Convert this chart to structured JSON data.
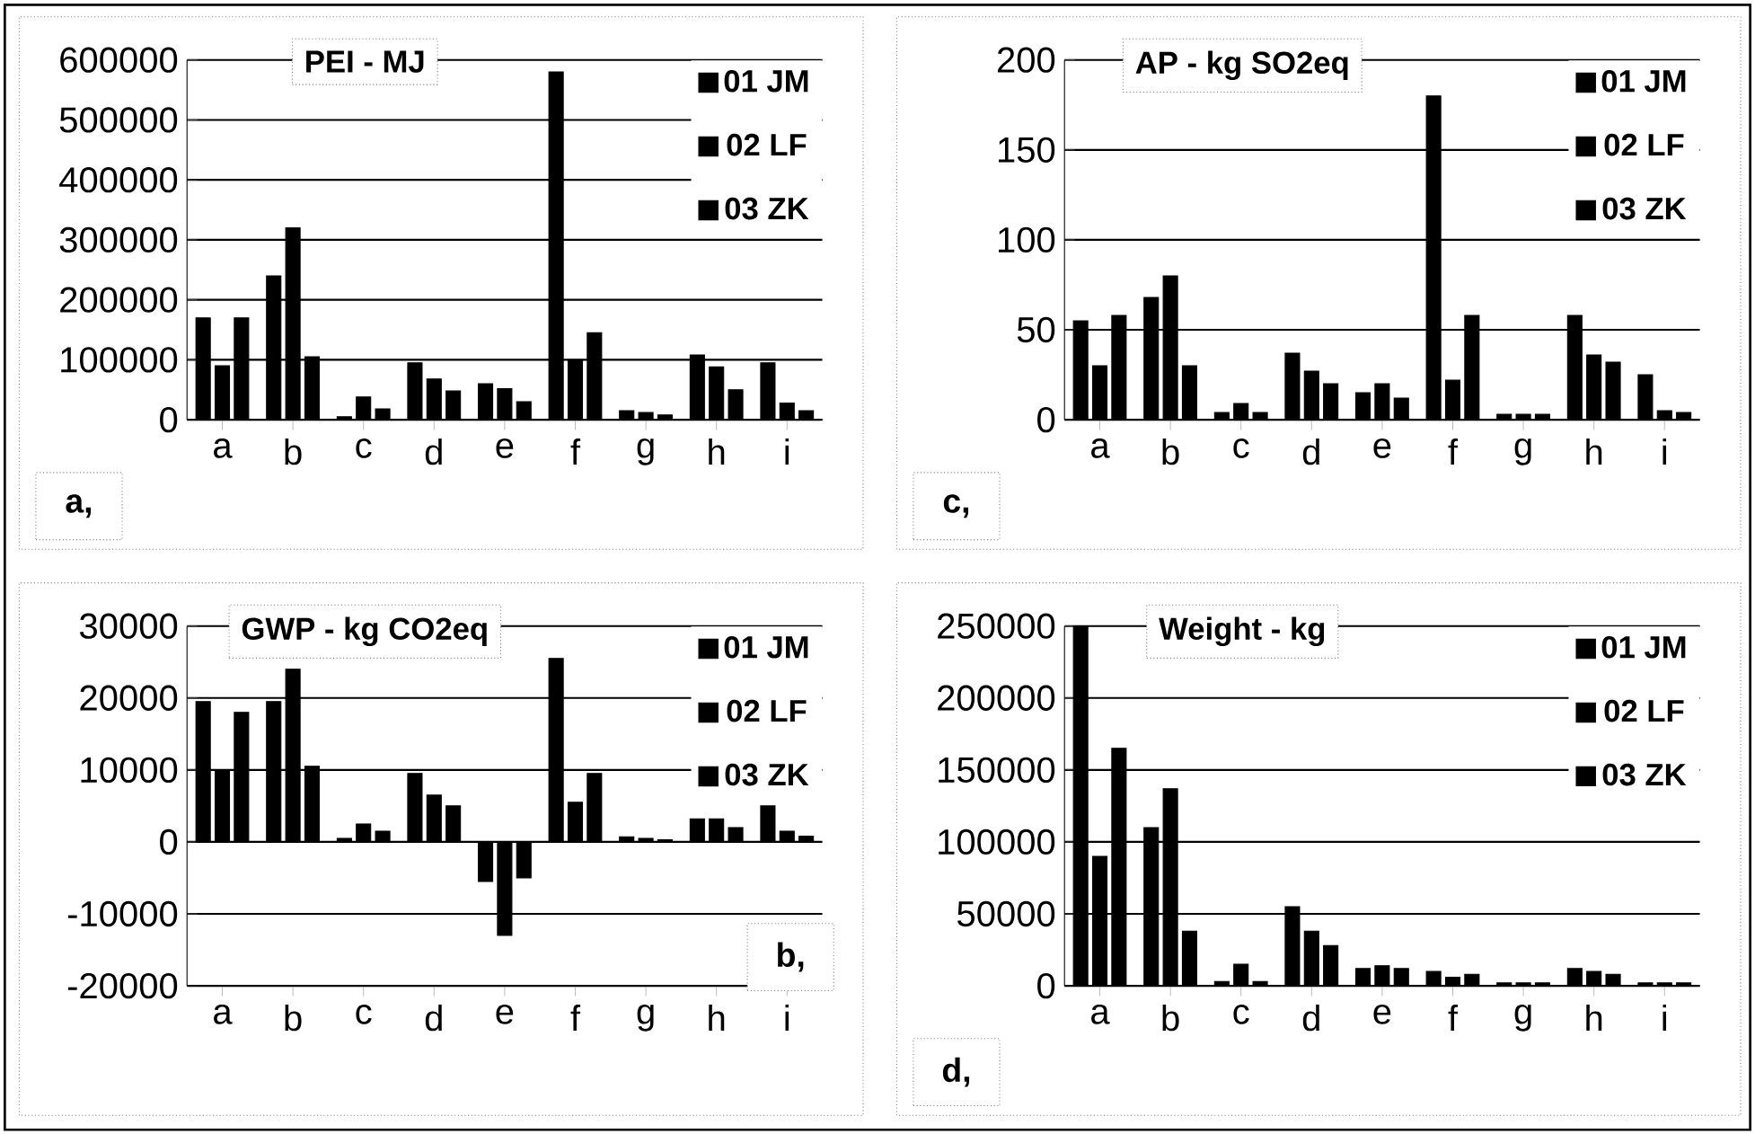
{
  "chart_data": [
    {
      "type": "bar",
      "title": "PEI - MJ",
      "categories": [
        "a",
        "b",
        "c",
        "d",
        "e",
        "f",
        "g",
        "h",
        "i"
      ],
      "series": [
        {
          "name": "01 JM",
          "color": "#000000",
          "values": [
            170000,
            240000,
            5000,
            95000,
            60000,
            580000,
            15000,
            108000,
            95000
          ]
        },
        {
          "name": "02 LF",
          "color": "#000000",
          "values": [
            90000,
            320000,
            38000,
            68000,
            52000,
            100000,
            12000,
            88000,
            28000
          ]
        },
        {
          "name": "03 ZK",
          "color": "#000000",
          "values": [
            170000,
            105000,
            18000,
            48000,
            30000,
            145000,
            8000,
            50000,
            15000
          ]
        }
      ],
      "ylim": [
        0,
        600000
      ],
      "yticks": [
        0,
        100000,
        200000,
        300000,
        400000,
        500000,
        600000
      ],
      "grid": "y",
      "legend": "top right",
      "annotations": [
        "a,"
      ]
    },
    {
      "type": "bar",
      "title": "AP - kg SO2eq",
      "categories": [
        "a",
        "b",
        "c",
        "d",
        "e",
        "f",
        "g",
        "h",
        "i"
      ],
      "series": [
        {
          "name": "01 JM",
          "color": "#000000",
          "values": [
            55,
            68,
            4,
            37,
            15,
            180,
            3,
            58,
            25
          ]
        },
        {
          "name": "02 LF",
          "color": "#000000",
          "values": [
            30,
            80,
            9,
            27,
            20,
            22,
            3,
            36,
            5
          ]
        },
        {
          "name": "03 ZK",
          "color": "#000000",
          "values": [
            58,
            30,
            4,
            20,
            12,
            58,
            3,
            32,
            4
          ]
        }
      ],
      "ylim": [
        0,
        200
      ],
      "yticks": [
        0,
        50,
        100,
        150,
        200
      ],
      "grid": "y",
      "legend": "top right",
      "annotations": [
        "c,"
      ]
    },
    {
      "type": "bar",
      "title": "GWP - kg CO2eq",
      "categories": [
        "a",
        "b",
        "c",
        "d",
        "e",
        "f",
        "g",
        "h",
        "i"
      ],
      "series": [
        {
          "name": "01 JM",
          "color": "#000000",
          "values": [
            19500,
            19500,
            500,
            9500,
            -5500,
            25500,
            700,
            3200,
            5000
          ]
        },
        {
          "name": "02 LF",
          "color": "#000000",
          "values": [
            10000,
            24000,
            2500,
            6500,
            -13000,
            5500,
            500,
            3200,
            1500
          ]
        },
        {
          "name": "03 ZK",
          "color": "#000000",
          "values": [
            18000,
            10500,
            1500,
            5000,
            -5000,
            9500,
            300,
            2000,
            800
          ]
        }
      ],
      "ylim": [
        -20000,
        30000
      ],
      "yticks": [
        -20000,
        -10000,
        0,
        10000,
        20000,
        30000
      ],
      "grid": "y",
      "legend": "top right",
      "annotations": [
        "b,"
      ]
    },
    {
      "type": "bar",
      "title": "Weight - kg",
      "categories": [
        "a",
        "b",
        "c",
        "d",
        "e",
        "f",
        "g",
        "h",
        "i"
      ],
      "series": [
        {
          "name": "01 JM",
          "color": "#000000",
          "values": [
            250000,
            110000,
            3000,
            55000,
            12000,
            10000,
            2000,
            12000,
            2000
          ]
        },
        {
          "name": "02 LF",
          "color": "#000000",
          "values": [
            90000,
            137000,
            15000,
            38000,
            14000,
            6000,
            2000,
            10000,
            2000
          ]
        },
        {
          "name": "03 ZK",
          "color": "#000000",
          "values": [
            165000,
            38000,
            3000,
            28000,
            12000,
            8000,
            2000,
            8000,
            2000
          ]
        }
      ],
      "ylim": [
        0,
        250000
      ],
      "yticks": [
        0,
        50000,
        100000,
        150000,
        200000,
        250000
      ],
      "grid": "y",
      "legend": "top right",
      "annotations": [
        "d,"
      ]
    }
  ]
}
